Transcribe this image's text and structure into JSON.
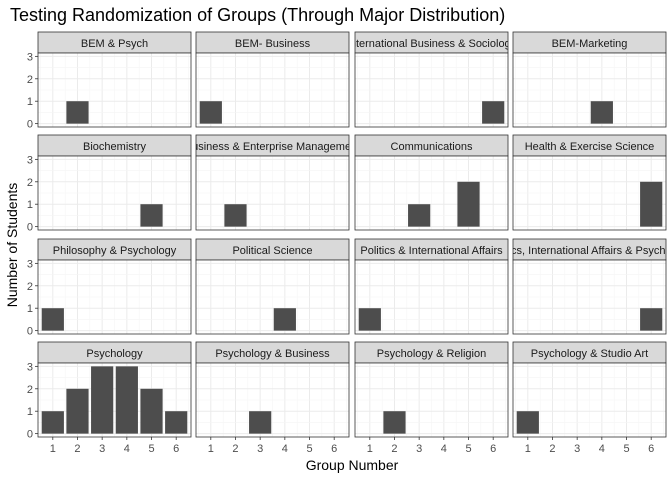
{
  "chart_data": {
    "type": "bar",
    "title": "Testing Randomization of Groups (Through Major Distribution)",
    "xlabel": "Group Number",
    "ylabel": "Number of Students",
    "x_ticks": [
      1,
      2,
      3,
      4,
      5,
      6
    ],
    "y_ticks": [
      0,
      1,
      2,
      3
    ],
    "xlim": [
      0.4,
      6.6
    ],
    "ylim": [
      -0.15,
      3.15
    ],
    "grid": true,
    "bar_color": "#4d4d4d",
    "strip_color": "#d9d9d9",
    "panels": [
      {
        "name": "BEM & Psych",
        "x": [
          2
        ],
        "values": [
          1
        ]
      },
      {
        "name": "BEM- Business",
        "x": [
          1
        ],
        "values": [
          1
        ]
      },
      {
        "name": "International Business & Sociology",
        "x": [
          6
        ],
        "values": [
          1
        ]
      },
      {
        "name": "BEM-Marketing",
        "x": [
          4
        ],
        "values": [
          1
        ]
      },
      {
        "name": "Biochemistry",
        "x": [
          5
        ],
        "values": [
          1
        ]
      },
      {
        "name": "Business & Enterprise Management",
        "x": [
          2
        ],
        "values": [
          1
        ]
      },
      {
        "name": "Communications",
        "x": [
          3,
          5
        ],
        "values": [
          1,
          2
        ]
      },
      {
        "name": "Health & Exercise Science",
        "x": [
          6
        ],
        "values": [
          2
        ]
      },
      {
        "name": "Philosophy & Psychology",
        "x": [
          1
        ],
        "values": [
          1
        ]
      },
      {
        "name": "Political Science",
        "x": [
          4
        ],
        "values": [
          1
        ]
      },
      {
        "name": "Politics & International Affairs",
        "x": [
          1
        ],
        "values": [
          1
        ]
      },
      {
        "name": "Politics, International Affairs & Psychology",
        "x": [
          6
        ],
        "values": [
          1
        ]
      },
      {
        "name": "Psychology",
        "x": [
          1,
          2,
          3,
          4,
          5,
          6
        ],
        "values": [
          1,
          2,
          3,
          3,
          2,
          1
        ]
      },
      {
        "name": "Psychology & Business",
        "x": [
          3
        ],
        "values": [
          1
        ]
      },
      {
        "name": "Psychology & Religion",
        "x": [
          2
        ],
        "values": [
          1
        ]
      },
      {
        "name": "Psychology & Studio Art",
        "x": [
          1
        ],
        "values": [
          1
        ]
      }
    ]
  }
}
